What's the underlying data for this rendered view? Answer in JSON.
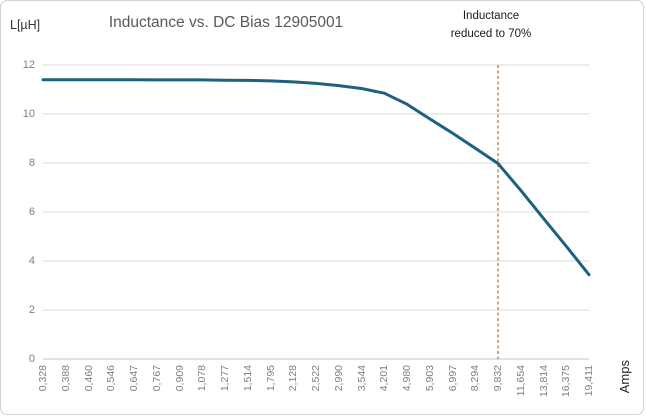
{
  "chart": {
    "title": "Inductance vs. DC Bias 12905001",
    "y_axis_unit": "L[µH]",
    "x_axis_unit": "Amps",
    "annotation": {
      "line1": "Inductance",
      "line2": "reduced to 70%"
    },
    "colors": {
      "curve": "#1d617f",
      "marker_line": "#b06a30",
      "gridline": "#d9d9d9",
      "axis_line": "#c6c6c6",
      "tick_text": "#7f7f7f",
      "title_text": "#595959"
    }
  },
  "chart_data": {
    "type": "line",
    "title": "Inductance vs. DC Bias 12905001",
    "xlabel": "Amps",
    "ylabel": "L[µH]",
    "x_categories": [
      "0,328",
      "0,388",
      "0,460",
      "0,546",
      "0,647",
      "0,767",
      "0,909",
      "1,078",
      "1,277",
      "1,514",
      "1,795",
      "2,128",
      "2,522",
      "2,990",
      "3,544",
      "4,201",
      "4,980",
      "5,903",
      "6,997",
      "8,294",
      "9,832",
      "11,654",
      "13,814",
      "16,375",
      "19,411"
    ],
    "series": [
      {
        "name": "Inductance",
        "values": [
          11.4,
          11.4,
          11.4,
          11.4,
          11.4,
          11.39,
          11.39,
          11.39,
          11.38,
          11.37,
          11.35,
          11.31,
          11.25,
          11.16,
          11.04,
          10.85,
          10.4,
          9.8,
          9.22,
          8.6,
          7.98,
          6.88,
          5.74,
          4.6,
          3.44
        ]
      }
    ],
    "ylim": [
      0,
      12
    ],
    "y_ticks": [
      0,
      2,
      4,
      6,
      8,
      10,
      12
    ],
    "grid": true,
    "legend": false,
    "annotation": {
      "text": "Inductance reduced to 70%",
      "marker": "vertical-dashed-line",
      "at_category": "9,832",
      "category_index": 20,
      "value_at_marker": 7.98
    }
  }
}
